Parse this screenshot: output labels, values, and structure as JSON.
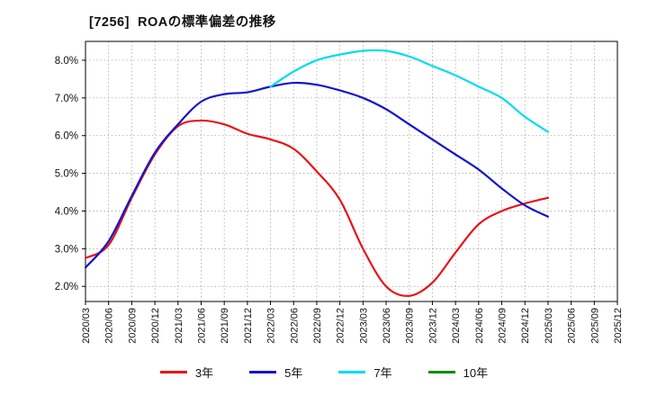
{
  "chart_data": {
    "type": "line",
    "title": "[7256]  ROAの標準偏差の推移",
    "categories": [
      "2020/03",
      "2020/06",
      "2020/09",
      "2020/12",
      "2021/03",
      "2021/06",
      "2021/09",
      "2021/12",
      "2022/03",
      "2022/06",
      "2022/09",
      "2022/12",
      "2023/03",
      "2023/06",
      "2023/09",
      "2023/12",
      "2024/03",
      "2024/06",
      "2024/09",
      "2024/12",
      "2025/03",
      "2025/06",
      "2025/09",
      "2025/12"
    ],
    "ylim": [
      1.6,
      8.5
    ],
    "yticks": [
      2,
      3,
      4,
      5,
      6,
      7,
      8
    ],
    "ytick_labels": [
      "2.0%",
      "3.0%",
      "4.0%",
      "5.0%",
      "6.0%",
      "7.0%",
      "8.0%"
    ],
    "grid": true,
    "legend_position": "bottom",
    "series": [
      {
        "name": "3年",
        "color": "#e81418",
        "values": [
          2.75,
          3.1,
          4.35,
          5.5,
          6.25,
          6.4,
          6.3,
          6.05,
          5.9,
          5.65,
          5.05,
          4.3,
          3.0,
          2.0,
          1.75,
          2.1,
          2.9,
          3.65,
          4.0,
          4.2,
          4.35,
          null,
          null,
          null
        ]
      },
      {
        "name": "5年",
        "color": "#1414cc",
        "values": [
          2.5,
          3.2,
          4.4,
          5.55,
          6.3,
          6.9,
          7.1,
          7.15,
          7.3,
          7.4,
          7.35,
          7.2,
          7.0,
          6.7,
          6.3,
          5.9,
          5.5,
          5.1,
          4.6,
          4.15,
          3.85,
          null,
          null,
          null
        ]
      },
      {
        "name": "7年",
        "color": "#00dcee",
        "values": [
          null,
          null,
          null,
          null,
          null,
          null,
          null,
          null,
          7.3,
          7.7,
          8.0,
          8.15,
          8.25,
          8.25,
          8.1,
          7.85,
          7.6,
          7.3,
          7.0,
          6.5,
          6.1,
          null,
          null,
          null
        ]
      },
      {
        "name": "10年",
        "color": "#108a10",
        "values": [
          null,
          null,
          null,
          null,
          null,
          null,
          null,
          null,
          null,
          null,
          null,
          null,
          null,
          null,
          null,
          null,
          null,
          null,
          null,
          null,
          null,
          null,
          null,
          null
        ]
      }
    ]
  }
}
